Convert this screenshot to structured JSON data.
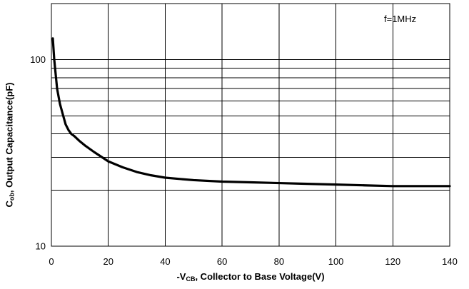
{
  "chart_data": {
    "type": "line",
    "scale_y": "log",
    "xlim": [
      0,
      140
    ],
    "ylim": [
      10,
      200
    ],
    "x_ticks": [
      "0",
      "20",
      "40",
      "60",
      "80",
      "100",
      "120",
      "140"
    ],
    "y_ticks": [
      "10",
      "100"
    ],
    "ylabel": {
      "prefix": "C",
      "sub": "ob",
      "suffix": ", Output Capacitance(pF)"
    },
    "xlabel": {
      "prefix": "-V",
      "sub": "CB",
      "suffix": ", Collector to Base Voltage(V)"
    },
    "annotation": "f=1MHz",
    "grid": true,
    "colors": {
      "line": "#000000",
      "grid": "#000000"
    },
    "series": [
      {
        "x": [
          0.5,
          1,
          2,
          3,
          4,
          5,
          6,
          7,
          8,
          10,
          12,
          15,
          20,
          25,
          30,
          35,
          40,
          50,
          60,
          70,
          80,
          90,
          100,
          110,
          120,
          130,
          140
        ],
        "values": [
          130,
          100,
          70,
          58,
          51,
          45,
          42,
          40,
          39,
          36.5,
          34.5,
          32,
          28.5,
          26.5,
          25,
          24,
          23.3,
          22.6,
          22.2,
          22.0,
          21.8,
          21.6,
          21.4,
          21.2,
          21.0,
          21.0,
          21.0
        ]
      }
    ]
  }
}
